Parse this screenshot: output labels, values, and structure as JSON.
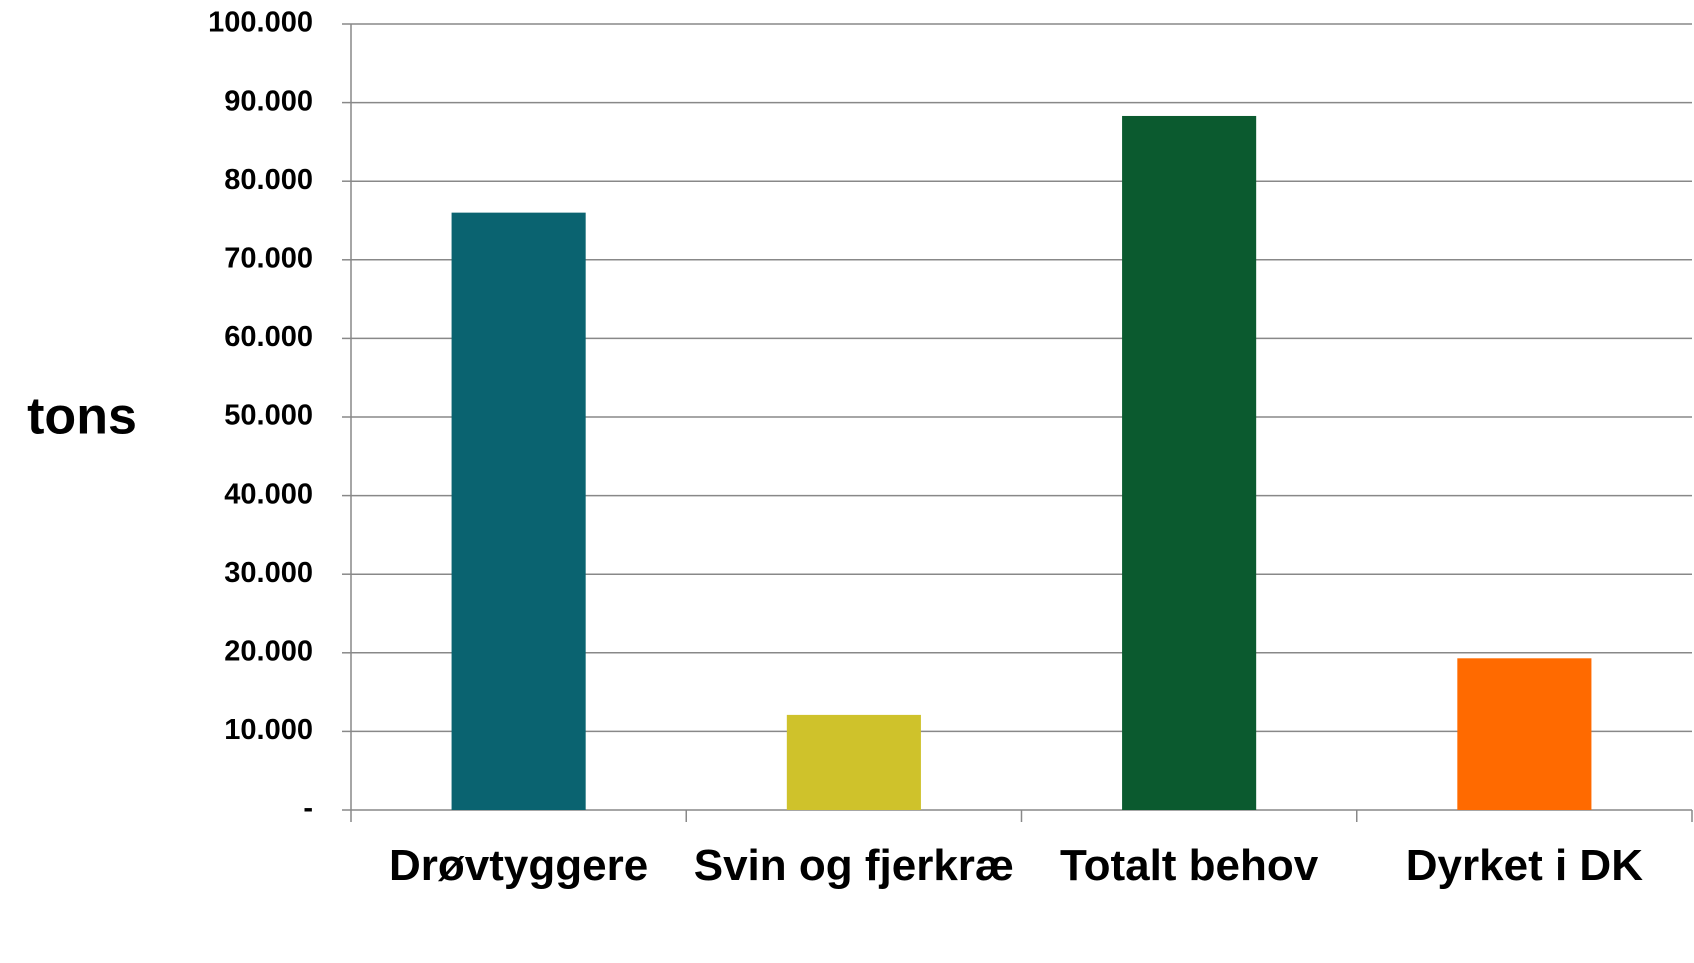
{
  "chart_data": {
    "type": "bar",
    "y_label": "tons",
    "categories": [
      "Drøvtyggere",
      "Svin og fjerkræ",
      "Totalt behov",
      "Dyrket i DK"
    ],
    "values": [
      76000,
      12100,
      88300,
      19300
    ],
    "colors": [
      "#0a6370",
      "#cfc22b",
      "#0b5a2f",
      "#ff6a00"
    ],
    "ylim": [
      0,
      100000
    ],
    "yticks": [
      {
        "value": 0,
        "label": "-"
      },
      {
        "value": 10000,
        "label": "10.000"
      },
      {
        "value": 20000,
        "label": "20.000"
      },
      {
        "value": 30000,
        "label": "30.000"
      },
      {
        "value": 40000,
        "label": "40.000"
      },
      {
        "value": 50000,
        "label": "50.000"
      },
      {
        "value": 60000,
        "label": "60.000"
      },
      {
        "value": 70000,
        "label": "70.000"
      },
      {
        "value": 80000,
        "label": "80.000"
      },
      {
        "value": 90000,
        "label": "90.000"
      },
      {
        "value": 100000,
        "label": "100.000"
      }
    ],
    "grid": true
  }
}
